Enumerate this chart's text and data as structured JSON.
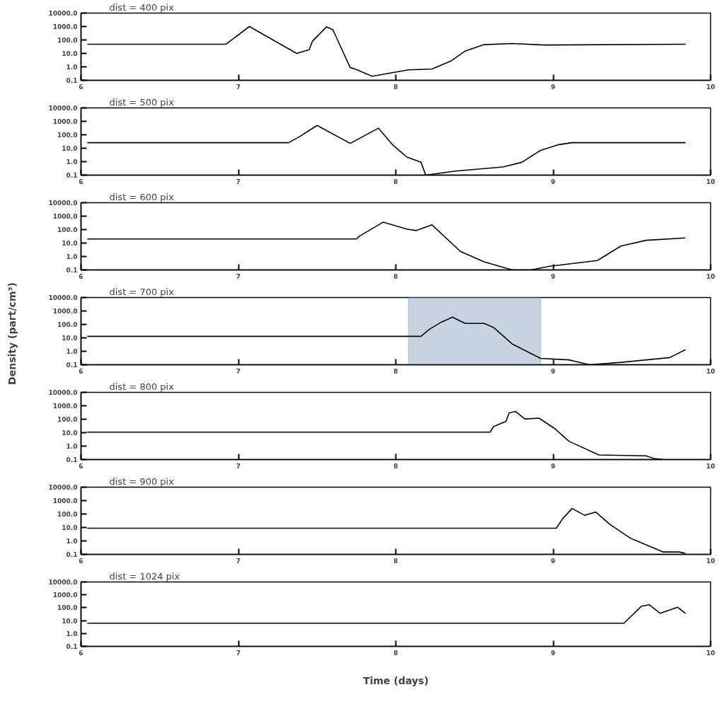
{
  "chart_data": [
    {
      "type": "line",
      "title": "dist = 400 pix",
      "x": [
        6.04,
        6.92,
        7.07,
        7.37,
        7.45,
        7.47,
        7.56,
        7.6,
        7.71,
        7.74,
        7.85,
        8.08,
        8.23,
        8.35,
        8.44,
        8.56,
        8.74,
        8.95,
        9.84
      ],
      "series": [
        {
          "color": "#000000",
          "values": [
            48,
            48,
            1000,
            10,
            19,
            80,
            950,
            580,
            0.9,
            0.7,
            0.2,
            0.6,
            0.7,
            2.7,
            15,
            45,
            55,
            42,
            48
          ]
        }
      ],
      "xlim": [
        6,
        10
      ],
      "ylim": [
        0.1,
        10000
      ],
      "log": "y",
      "xticks": [
        6,
        7,
        8,
        9,
        10
      ],
      "yticks": [
        {
          "value": 0.1,
          "label": "0.1"
        },
        {
          "value": 1,
          "label": "1.0"
        },
        {
          "value": 10,
          "label": "10.0"
        },
        {
          "value": 100,
          "label": "100.0"
        },
        {
          "value": 1000,
          "label": "1000.0"
        },
        {
          "value": 10000,
          "label": "10000.0"
        }
      ],
      "grid": false
    },
    {
      "type": "line",
      "title": "dist = 500 pix",
      "x": [
        6.04,
        7.32,
        7.39,
        7.5,
        7.71,
        7.89,
        7.98,
        8.07,
        8.16,
        8.19,
        8.38,
        8.68,
        8.8,
        8.92,
        9.03,
        9.12,
        9.84
      ],
      "series": [
        {
          "color": "#000000",
          "values": [
            26,
            26,
            75,
            500,
            23,
            310,
            18,
            2.2,
            0.9,
            0.1,
            0.2,
            0.4,
            0.9,
            7,
            18,
            26,
            26
          ]
        }
      ],
      "xlim": [
        6,
        10
      ],
      "ylim": [
        0.1,
        10000
      ],
      "log": "y",
      "xticks": [
        6,
        7,
        8,
        9,
        10
      ],
      "yticks": [
        {
          "value": 0.1,
          "label": "0.1"
        },
        {
          "value": 1,
          "label": "1.0"
        },
        {
          "value": 10,
          "label": "10.0"
        },
        {
          "value": 100,
          "label": "100.0"
        },
        {
          "value": 1000,
          "label": "1000.0"
        },
        {
          "value": 10000,
          "label": "10000.0"
        }
      ],
      "grid": false
    },
    {
      "type": "line",
      "title": "dist = 600 pix",
      "x": [
        6.04,
        7.75,
        7.77,
        7.92,
        8.07,
        8.13,
        8.23,
        8.41,
        8.56,
        8.74,
        8.86,
        8.98,
        9.28,
        9.43,
        9.59,
        9.84
      ],
      "series": [
        {
          "color": "#000000",
          "values": [
            20,
            20,
            33,
            360,
            110,
            85,
            225,
            2.4,
            0.4,
            0.1,
            0.1,
            0.19,
            0.5,
            6,
            16,
            24
          ]
        }
      ],
      "xlim": [
        6,
        10
      ],
      "ylim": [
        0.1,
        10000
      ],
      "log": "y",
      "xticks": [
        6,
        7,
        8,
        9,
        10
      ],
      "yticks": [
        {
          "value": 0.1,
          "label": "0.1"
        },
        {
          "value": 1,
          "label": "1.0"
        },
        {
          "value": 10,
          "label": "10.0"
        },
        {
          "value": 100,
          "label": "100.0"
        },
        {
          "value": 1000,
          "label": "1000.0"
        },
        {
          "value": 10000,
          "label": "10000.0"
        }
      ],
      "grid": false
    },
    {
      "type": "line",
      "title": "dist = 700 pix",
      "ylabel": "Density (part/cm³)",
      "x": [
        6.04,
        8.16,
        8.21,
        8.29,
        8.36,
        8.44,
        8.56,
        8.62,
        8.74,
        8.92,
        9.1,
        9.23,
        9.43,
        9.74,
        9.84
      ],
      "series": [
        {
          "color": "#000000",
          "values": [
            13,
            13,
            41,
            150,
            350,
            120,
            120,
            60,
            3.5,
            0.3,
            0.23,
            0.1,
            0.15,
            0.34,
            1.3
          ]
        }
      ],
      "xlim": [
        6,
        10
      ],
      "ylim": [
        0.1,
        10000
      ],
      "log": "y",
      "xticks": [
        6,
        7,
        8,
        9,
        10
      ],
      "yticks": [
        {
          "value": 0.1,
          "label": "0.1"
        },
        {
          "value": 1,
          "label": "1.0"
        },
        {
          "value": 10,
          "label": "10.0"
        },
        {
          "value": 100,
          "label": "100.0"
        },
        {
          "value": 1000,
          "label": "1000.0"
        },
        {
          "value": 10000,
          "label": "10000.0"
        }
      ],
      "grid": false,
      "bands": [
        {
          "axis": "x",
          "from": 8.08,
          "to": 8.92,
          "color": "#b4c4d6"
        }
      ]
    },
    {
      "type": "line",
      "title": "dist = 800 pix",
      "x": [
        6.04,
        8.6,
        8.62,
        8.7,
        8.72,
        8.76,
        8.82,
        8.91,
        9.01,
        9.1,
        9.29,
        9.59,
        9.64,
        9.7
      ],
      "series": [
        {
          "color": "#000000",
          "values": [
            11,
            11,
            28,
            70,
            300,
            380,
            105,
            120,
            20,
            2.3,
            0.22,
            0.19,
            0.12,
            0.1
          ]
        }
      ],
      "xlim": [
        6,
        10
      ],
      "ylim": [
        0.1,
        10000
      ],
      "log": "y",
      "xticks": [
        6,
        7,
        8,
        9,
        10
      ],
      "yticks": [
        {
          "value": 0.1,
          "label": "0.1"
        },
        {
          "value": 1,
          "label": "1.0"
        },
        {
          "value": 10,
          "label": "10.0"
        },
        {
          "value": 100,
          "label": "100.0"
        },
        {
          "value": 1000,
          "label": "1000.0"
        },
        {
          "value": 10000,
          "label": "10000.0"
        }
      ],
      "grid": false
    },
    {
      "type": "line",
      "title": "dist = 900 pix",
      "x": [
        6.04,
        9.02,
        9.06,
        9.12,
        9.2,
        9.27,
        9.36,
        9.49,
        9.7,
        9.8,
        9.84
      ],
      "series": [
        {
          "color": "#000000",
          "values": [
            8.9,
            8.9,
            45,
            260,
            80,
            140,
            17,
            1.6,
            0.15,
            0.15,
            0.12
          ]
        }
      ],
      "xlim": [
        6,
        10
      ],
      "ylim": [
        0.1,
        10000
      ],
      "log": "y",
      "xticks": [
        6,
        7,
        8,
        9,
        10
      ],
      "yticks": [
        {
          "value": 0.1,
          "label": "0.1"
        },
        {
          "value": 1,
          "label": "1.0"
        },
        {
          "value": 10,
          "label": "10.0"
        },
        {
          "value": 100,
          "label": "100.0"
        },
        {
          "value": 1000,
          "label": "1000.0"
        },
        {
          "value": 10000,
          "label": "10000.0"
        }
      ],
      "grid": false
    },
    {
      "type": "line",
      "title": "dist = 1024 pix",
      "xlabel": "Time (days)",
      "x": [
        6.04,
        9.45,
        9.56,
        9.61,
        9.68,
        9.79,
        9.84
      ],
      "series": [
        {
          "color": "#000000",
          "values": [
            6.3,
            6.3,
            130,
            170,
            37,
            110,
            37
          ]
        }
      ],
      "xlim": [
        6,
        10
      ],
      "ylim": [
        0.1,
        10000
      ],
      "log": "y",
      "xticks": [
        6,
        7,
        8,
        9,
        10
      ],
      "yticks": [
        {
          "value": 0.1,
          "label": "0.1"
        },
        {
          "value": 1,
          "label": "1.0"
        },
        {
          "value": 10,
          "label": "10.0"
        },
        {
          "value": 100,
          "label": "100.0"
        },
        {
          "value": 1000,
          "label": "1000.0"
        },
        {
          "value": 10000,
          "label": "10000.0"
        }
      ],
      "grid": false
    }
  ]
}
